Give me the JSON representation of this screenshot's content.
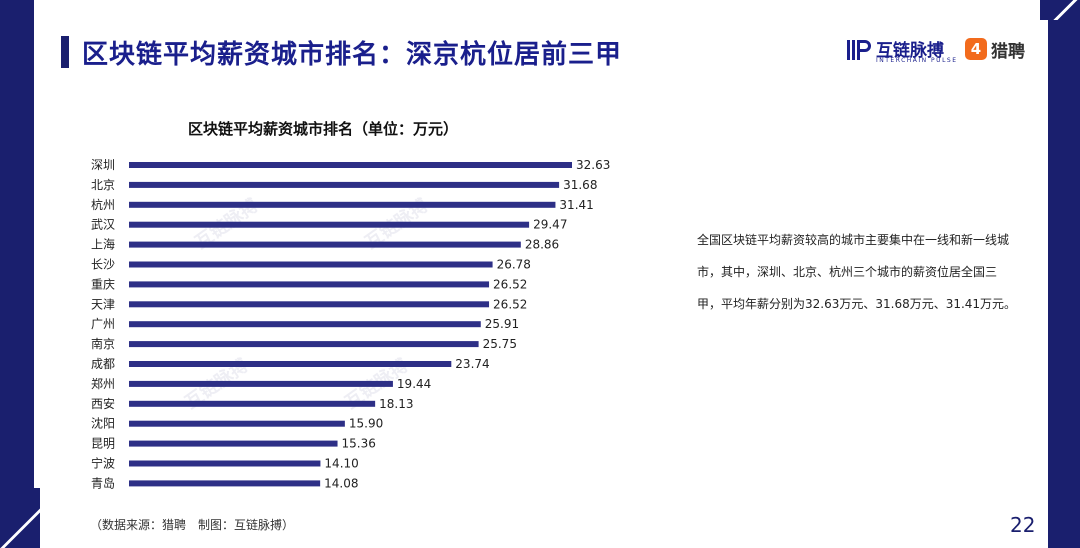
{
  "page": {
    "title": "区块链平均薪资城市排名：深京杭位居前三甲",
    "page_number": "22"
  },
  "logos": {
    "interchain_name": "互链脉搏",
    "interchain_sub": "INTERCHAIN PULSE",
    "liepin_mark": "4",
    "liepin_name": "猎聘"
  },
  "description": "全国区块链平均薪资较高的城市主要集中在一线和新一线城市，其中，深圳、北京、杭州三个城市的薪资位居全国三甲，平均年薪分别为32.63万元、31.68万元、31.41万元。",
  "source": "（数据来源：猎聘　制图：互链脉搏）",
  "watermark": "互链脉搏",
  "colors": {
    "bar": "#2d2f86",
    "title": "#1a1f8c",
    "frame": "#1a1f6e",
    "accent": "#f26b1d"
  },
  "chart_data": {
    "type": "bar",
    "orientation": "horizontal",
    "title": "区块链平均薪资城市排名（单位：万元）",
    "categories": [
      "深圳",
      "北京",
      "杭州",
      "武汉",
      "上海",
      "长沙",
      "重庆",
      "天津",
      "广州",
      "南京",
      "成都",
      "郑州",
      "西安",
      "沈阳",
      "昆明",
      "宁波",
      "青岛"
    ],
    "values": [
      32.63,
      31.68,
      31.41,
      29.47,
      28.86,
      26.78,
      26.52,
      26.52,
      25.91,
      25.75,
      23.74,
      19.44,
      18.13,
      15.9,
      15.36,
      14.1,
      14.08
    ],
    "value_labels": [
      "32.63",
      "31.68",
      "31.41",
      "29.47",
      "28.86",
      "26.78",
      "26.52",
      "26.52",
      "25.91",
      "25.75",
      "23.74",
      "19.44",
      "18.13",
      "15.90",
      "15.36",
      "14.10",
      "14.08"
    ],
    "xlim": [
      0,
      32.63
    ],
    "grid": false,
    "legend": "none"
  }
}
